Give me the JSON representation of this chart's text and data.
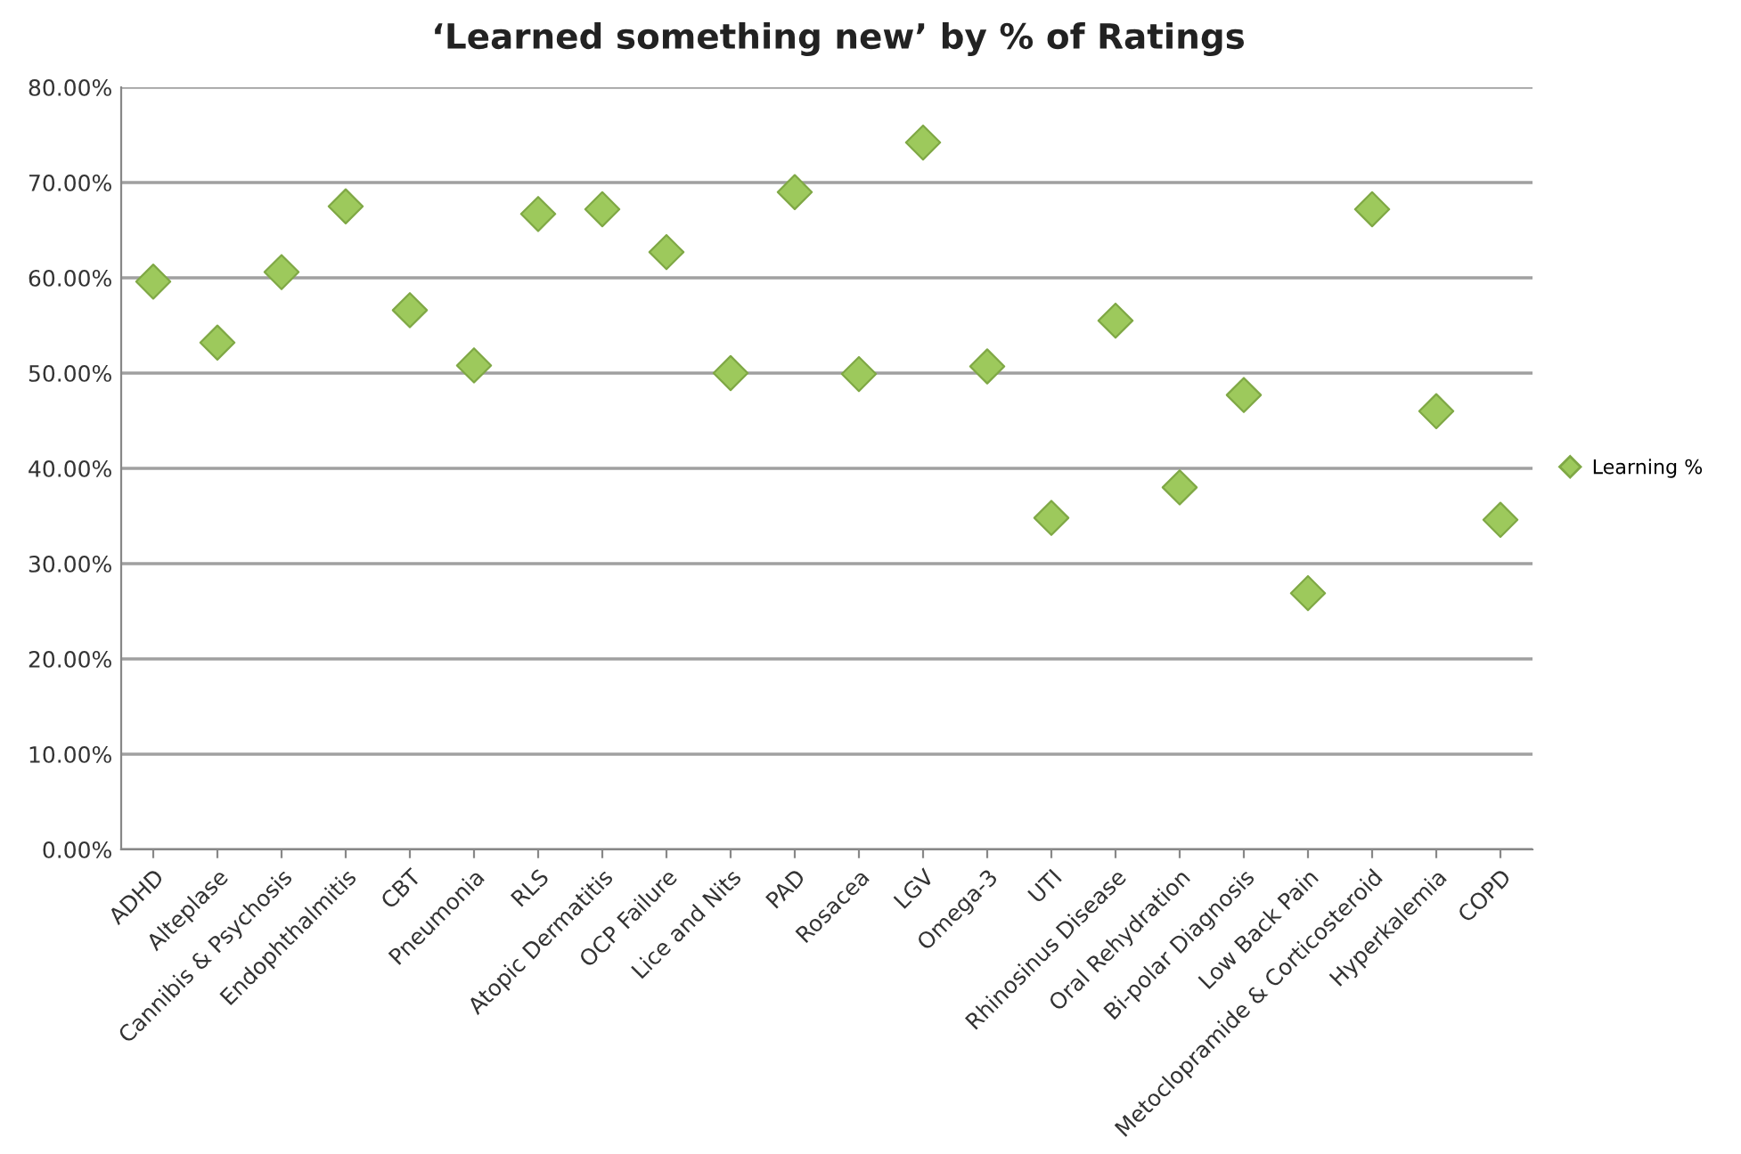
{
  "chart_data": {
    "type": "scatter",
    "title": "‘Learned something new’ by % of Ratings",
    "categories": [
      "ADHD",
      "Alteplase",
      "Cannibis & Psychosis",
      "Endophthalmitis",
      "CBT",
      "Pneumonia",
      "RLS",
      "Atopic Dermatitis",
      "OCP Failure",
      "Lice and Nits",
      "PAD",
      "Rosacea",
      "LGV",
      "Omega-3",
      "UTI",
      "Rhinosinus Disease",
      "Oral Rehydration",
      "Bi-polar Diagnosis",
      "Low Back Pain",
      "Metoclopramide & Corticosteroid",
      "Hyperkalemia",
      "COPD"
    ],
    "series": [
      {
        "name": "Learning %",
        "color": "#9dc95c",
        "values": [
          59.6,
          53.2,
          60.6,
          67.5,
          56.6,
          50.8,
          66.7,
          67.2,
          62.7,
          50.0,
          69.0,
          49.9,
          74.2,
          50.7,
          34.8,
          55.5,
          38.0,
          47.7,
          26.9,
          67.2,
          46.0,
          34.6
        ]
      }
    ],
    "ylim": [
      0,
      80
    ],
    "yticks": [
      {
        "value": 0,
        "label": "0.00%"
      },
      {
        "value": 10,
        "label": "10.00%"
      },
      {
        "value": 20,
        "label": "20.00%"
      },
      {
        "value": 30,
        "label": "30.00%"
      },
      {
        "value": 40,
        "label": "40.00%"
      },
      {
        "value": 50,
        "label": "50.00%"
      },
      {
        "value": 60,
        "label": "60.00%"
      },
      {
        "value": 70,
        "label": "70.00%"
      },
      {
        "value": 80,
        "label": "80.00%"
      }
    ],
    "grid": "y",
    "legend": "right",
    "marker": "diamond"
  }
}
